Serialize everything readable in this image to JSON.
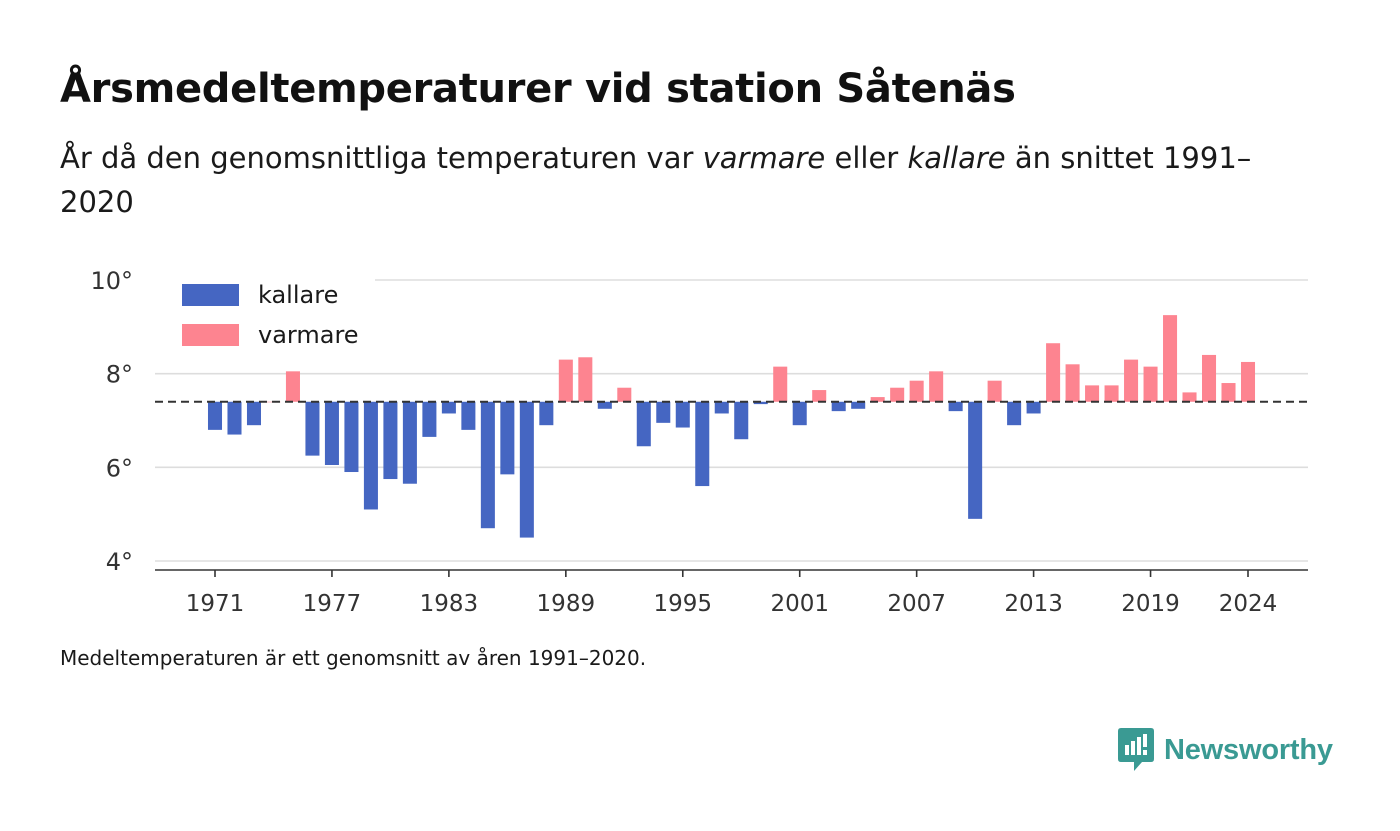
{
  "title": "Årsmedeltemperaturer vid station Såtenäs",
  "subtitle": {
    "part1": "År då den genomsnittliga temperaturen var ",
    "warm_word": "varmare",
    "part2": " eller ",
    "cold_word": "kallare",
    "part3": " än snittet 1991–2020"
  },
  "footnote": "Medeltemperaturen är ett genomsnitt av åren 1991–2020.",
  "brand": {
    "name": "Newsworthy",
    "icon": "newsworthy-logo-icon"
  },
  "colors": {
    "colder": "#4566c2",
    "warmer": "#fd8490",
    "axis": "#333333",
    "grid": "#dddddd",
    "brand": "#3a9a93"
  },
  "chart_data": {
    "type": "bar",
    "baseline": 7.4,
    "baseline_style": "dashed",
    "ylim": [
      3.8,
      10.2
    ],
    "y_ticks": [
      4,
      6,
      8,
      10
    ],
    "y_tick_labels": [
      "4°",
      "6°",
      "8°",
      "10°"
    ],
    "x_ticks": [
      1971,
      1977,
      1983,
      1989,
      1995,
      2001,
      2007,
      2013,
      2019,
      2024
    ],
    "x_tick_labels": [
      "1971",
      "1977",
      "1983",
      "1989",
      "1995",
      "2001",
      "2007",
      "2013",
      "2019",
      "2024"
    ],
    "grid": true,
    "legend": {
      "placement": "top-left",
      "entries": [
        {
          "label": "kallare",
          "series": "colder"
        },
        {
          "label": "varmare",
          "series": "warmer"
        }
      ]
    },
    "x": [
      1971,
      1972,
      1973,
      1974,
      1975,
      1976,
      1977,
      1978,
      1979,
      1980,
      1981,
      1982,
      1983,
      1984,
      1985,
      1986,
      1987,
      1988,
      1989,
      1990,
      1991,
      1992,
      1993,
      1994,
      1995,
      1996,
      1997,
      1998,
      1999,
      2000,
      2001,
      2002,
      2003,
      2004,
      2005,
      2006,
      2007,
      2008,
      2009,
      2010,
      2011,
      2012,
      2013,
      2014,
      2015,
      2016,
      2017,
      2018,
      2019,
      2020,
      2021,
      2022,
      2023,
      2024
    ],
    "values": [
      6.8,
      6.7,
      6.9,
      7.4,
      8.05,
      6.25,
      6.05,
      5.9,
      5.1,
      5.75,
      5.65,
      6.65,
      7.15,
      6.8,
      4.7,
      5.85,
      4.5,
      6.9,
      8.3,
      8.35,
      7.25,
      7.7,
      6.45,
      6.95,
      6.85,
      5.6,
      7.15,
      6.6,
      7.35,
      8.15,
      6.9,
      7.65,
      7.2,
      7.25,
      7.5,
      7.7,
      7.85,
      8.05,
      7.2,
      4.9,
      7.85,
      6.9,
      7.15,
      8.65,
      8.2,
      7.75,
      7.75,
      8.3,
      8.15,
      9.25,
      7.6,
      8.4,
      7.8,
      8.25
    ]
  }
}
